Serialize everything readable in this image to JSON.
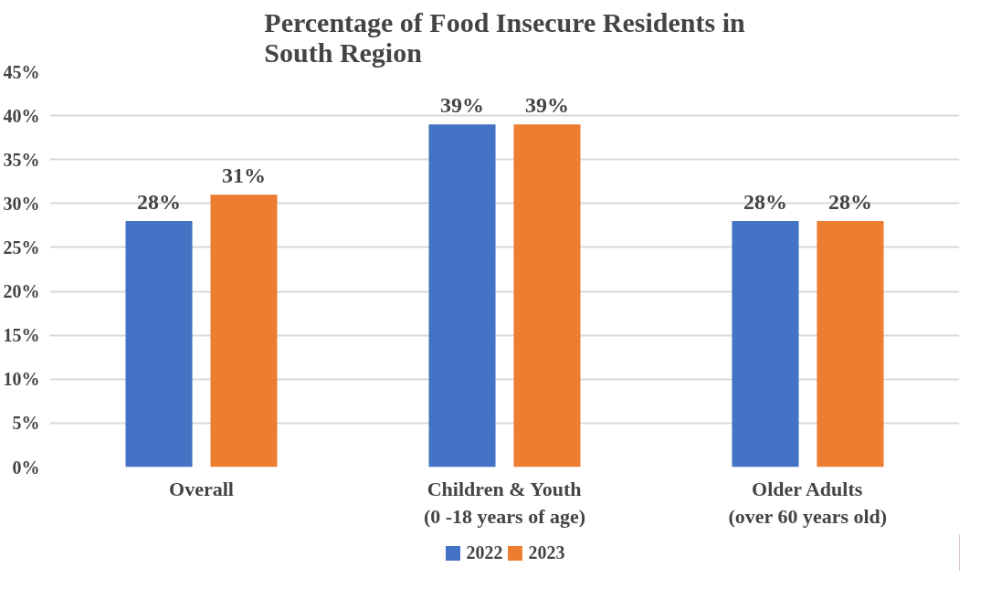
{
  "chart_data": {
    "type": "bar",
    "title": "Percentage of Food Insecure Residents in\nSouth Region",
    "categories": [
      "Overall",
      "Children & Youth\n(0 -18 years of age)",
      "Older Adults\n(over 60 years old)"
    ],
    "series": [
      {
        "name": "2022",
        "color": "#4472c4",
        "values": [
          28,
          39,
          28
        ],
        "value_labels": [
          "28%",
          "39%",
          "28%"
        ]
      },
      {
        "name": "2023",
        "color": "#ed7d31",
        "values": [
          31,
          39,
          28
        ],
        "value_labels": [
          "31%",
          "39%",
          "28%"
        ]
      }
    ],
    "ylim": [
      0,
      45
    ],
    "yticks": [
      {
        "value": 0,
        "label": "0%"
      },
      {
        "value": 5,
        "label": "5%"
      },
      {
        "value": 10,
        "label": "10%"
      },
      {
        "value": 15,
        "label": "15%"
      },
      {
        "value": 20,
        "label": "20%"
      },
      {
        "value": 25,
        "label": "25%"
      },
      {
        "value": 30,
        "label": "30%"
      },
      {
        "value": 35,
        "label": "35%"
      },
      {
        "value": 40,
        "label": "40%"
      },
      {
        "value": 45,
        "label": "45%"
      }
    ],
    "grid": "y",
    "legend": "bottom"
  }
}
